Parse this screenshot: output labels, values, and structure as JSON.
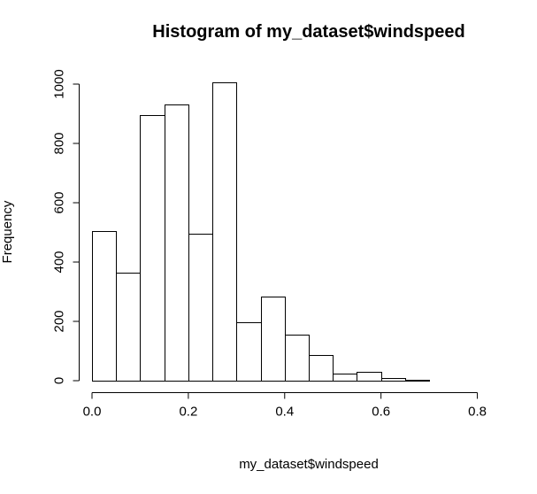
{
  "chart_data": {
    "type": "bar",
    "title": "Histogram of my_dataset$windspeed",
    "xlabel": "my_dataset$windspeed",
    "ylabel": "Frequency",
    "bin_width": 0.05,
    "bins": [
      {
        "x0": 0.0,
        "x1": 0.05,
        "count": 503
      },
      {
        "x0": 0.05,
        "x1": 0.1,
        "count": 364
      },
      {
        "x0": 0.1,
        "x1": 0.15,
        "count": 897
      },
      {
        "x0": 0.15,
        "x1": 0.2,
        "count": 932
      },
      {
        "x0": 0.2,
        "x1": 0.25,
        "count": 495
      },
      {
        "x0": 0.25,
        "x1": 0.3,
        "count": 1007
      },
      {
        "x0": 0.3,
        "x1": 0.35,
        "count": 198
      },
      {
        "x0": 0.35,
        "x1": 0.4,
        "count": 284
      },
      {
        "x0": 0.4,
        "x1": 0.45,
        "count": 155
      },
      {
        "x0": 0.45,
        "x1": 0.5,
        "count": 87
      },
      {
        "x0": 0.5,
        "x1": 0.55,
        "count": 25
      },
      {
        "x0": 0.55,
        "x1": 0.6,
        "count": 29
      },
      {
        "x0": 0.6,
        "x1": 0.65,
        "count": 10
      },
      {
        "x0": 0.65,
        "x1": 0.7,
        "count": 4
      },
      {
        "x0": 0.7,
        "x1": 0.75,
        "count": 1
      },
      {
        "x0": 0.75,
        "x1": 0.8,
        "count": 1
      },
      {
        "x0": 0.8,
        "x1": 0.85,
        "count": 1
      },
      {
        "x0": 0.85,
        "x1": 0.9,
        "count": 1
      }
    ],
    "xlim": [
      0,
      0.9
    ],
    "ylim": [
      0,
      1007
    ],
    "x_ticks": [
      0.0,
      0.2,
      0.4,
      0.6,
      0.8
    ],
    "x_tick_labels": [
      "0.0",
      "0.2",
      "0.4",
      "0.6",
      "0.8"
    ],
    "y_ticks": [
      0,
      200,
      400,
      600,
      800,
      1000
    ],
    "y_tick_labels": [
      "0",
      "200",
      "400",
      "600",
      "800",
      "1000"
    ],
    "grid": false,
    "colors": {
      "bar_fill": "#ffffff",
      "bar_stroke": "#000000"
    }
  }
}
